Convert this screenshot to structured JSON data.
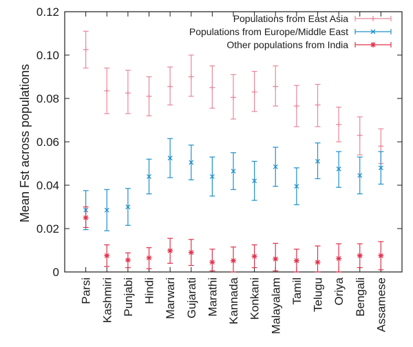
{
  "chart_data": {
    "type": "scatter",
    "title": "",
    "xlabel": "",
    "ylabel": "Mean Fst across populations",
    "ylim": [
      0,
      0.12
    ],
    "yticks": [
      "0",
      "0.02",
      "0.04",
      "0.06",
      "0.08",
      "0.10",
      "0.12"
    ],
    "categories": [
      "Parsi",
      "Kashmiri",
      "Punjabi",
      "Hindi",
      "Marwari",
      "Gujarati",
      "Marathi",
      "Kannada",
      "Konkani",
      "Malayalam",
      "Tamil",
      "Telugu",
      "Oriya",
      "Bengali",
      "Assamese"
    ],
    "legend_position": "top-right",
    "grid": false,
    "series": [
      {
        "name": "Populations from East Asia",
        "marker": "+",
        "color": "#e8879a",
        "values": [
          0.1025,
          0.0835,
          0.0825,
          0.081,
          0.0855,
          0.09,
          0.085,
          0.0805,
          0.083,
          0.0855,
          0.0765,
          0.077,
          0.068,
          0.063,
          0.058
        ],
        "lower": [
          0.094,
          0.073,
          0.073,
          0.072,
          0.077,
          0.081,
          0.0755,
          0.0705,
          0.074,
          0.0765,
          0.067,
          0.067,
          0.06,
          0.054,
          0.05
        ],
        "upper": [
          0.111,
          0.094,
          0.093,
          0.09,
          0.0945,
          0.1,
          0.095,
          0.091,
          0.0925,
          0.095,
          0.086,
          0.0865,
          0.076,
          0.0715,
          0.066
        ]
      },
      {
        "name": "Populations from Europe/Middle East",
        "marker": "x",
        "color": "#1e90c8",
        "values": [
          0.0285,
          0.0285,
          0.03,
          0.044,
          0.0525,
          0.0505,
          0.044,
          0.0465,
          0.042,
          0.0485,
          0.0395,
          0.051,
          0.0475,
          0.0445,
          0.048
        ],
        "lower": [
          0.0195,
          0.019,
          0.0215,
          0.036,
          0.0435,
          0.0425,
          0.035,
          0.038,
          0.033,
          0.0395,
          0.031,
          0.043,
          0.039,
          0.036,
          0.0405
        ],
        "upper": [
          0.0375,
          0.038,
          0.0385,
          0.052,
          0.0615,
          0.0585,
          0.053,
          0.055,
          0.051,
          0.0575,
          0.048,
          0.0595,
          0.0555,
          0.053,
          0.0555
        ]
      },
      {
        "name": "Other populations from India",
        "marker": "*",
        "color": "#e0304a",
        "values": [
          0.025,
          0.0075,
          0.0055,
          0.0065,
          0.0098,
          0.009,
          0.0045,
          0.0052,
          0.0072,
          0.006,
          0.0052,
          0.0045,
          0.0062,
          0.0075,
          0.0075
        ],
        "lower": [
          0.0205,
          0.0025,
          0.002,
          0.0015,
          0.004,
          0.003,
          0.0005,
          0.0,
          0.002,
          0.0005,
          0.0,
          0.0,
          0.0,
          0.002,
          0.001
        ],
        "upper": [
          0.03,
          0.0125,
          0.0088,
          0.0112,
          0.0155,
          0.015,
          0.0105,
          0.0115,
          0.0125,
          0.0132,
          0.0105,
          0.012,
          0.013,
          0.013,
          0.014
        ]
      }
    ]
  }
}
